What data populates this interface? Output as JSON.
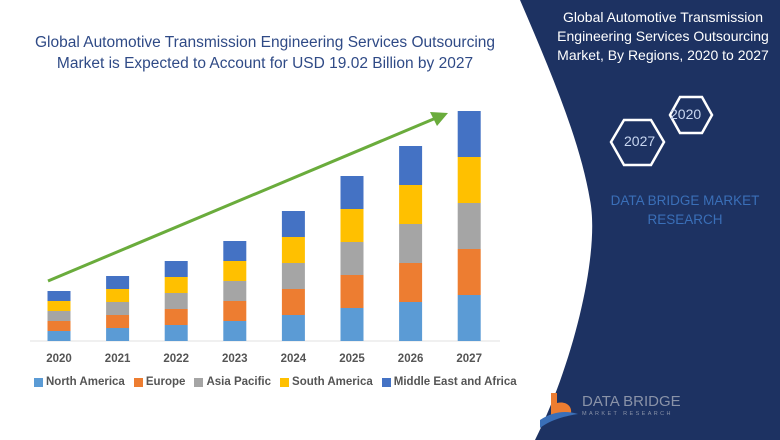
{
  "title": "Global Automotive Transmission Engineering Services  Outsourcing Market is Expected to Account for USD 19.02 Billion by 2027",
  "side_panel": {
    "title": "Global Automotive Transmission Engineering Services  Outsourcing Market, By Regions, 2020 to 2027",
    "hex_years": [
      "2020",
      "2027"
    ],
    "brand_text": "DATA BRIDGE MARKET RESEARCH",
    "logo_name": "DATA BRIDGE",
    "logo_sub": "MARKET RESEARCH",
    "background_color": "#1d3262"
  },
  "chart_data": {
    "type": "bar",
    "stacked": true,
    "categories": [
      "2020",
      "2021",
      "2022",
      "2023",
      "2024",
      "2025",
      "2026",
      "2027"
    ],
    "series": [
      {
        "name": "North America",
        "color": "#5b9bd5",
        "values": [
          1.0,
          1.3,
          1.6,
          2.0,
          2.6,
          3.3,
          3.9,
          4.6
        ]
      },
      {
        "name": "Europe",
        "color": "#ed7d31",
        "values": [
          1.0,
          1.3,
          1.6,
          2.0,
          2.6,
          3.3,
          3.9,
          4.6
        ]
      },
      {
        "name": "Asia Pacific",
        "color": "#a5a5a5",
        "values": [
          1.0,
          1.3,
          1.6,
          2.0,
          2.6,
          3.3,
          3.9,
          4.6
        ]
      },
      {
        "name": "South America",
        "color": "#ffc000",
        "values": [
          1.0,
          1.3,
          1.6,
          2.0,
          2.6,
          3.3,
          3.9,
          4.6
        ]
      },
      {
        "name": "Middle East and Africa",
        "color": "#4472c4",
        "values": [
          1.0,
          1.3,
          1.6,
          2.0,
          2.6,
          3.3,
          3.9,
          4.6
        ]
      }
    ],
    "xlabel": "",
    "ylabel": "",
    "y_axis_shown": false,
    "grid": false,
    "legend_position": "bottom",
    "trend_arrow_color": "#6aac3c"
  }
}
